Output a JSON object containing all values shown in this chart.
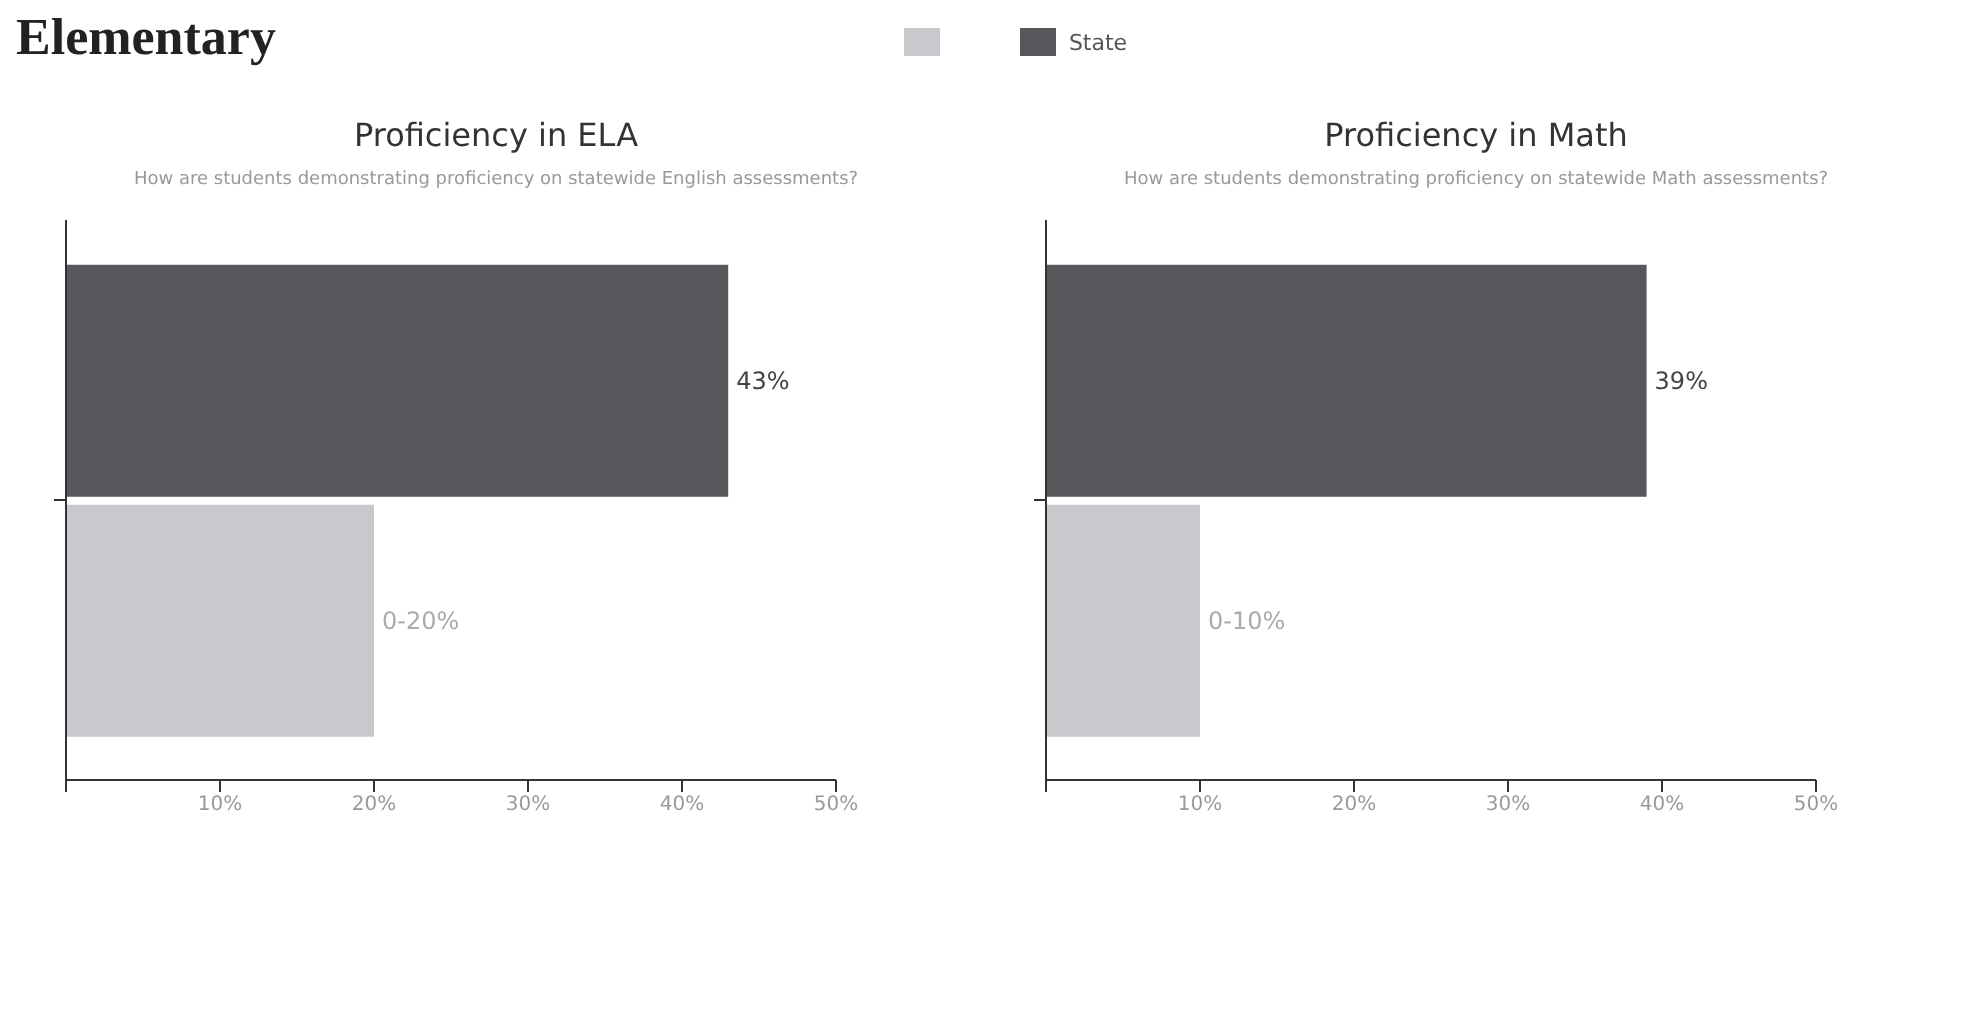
{
  "chart_data": [
    {
      "type": "bar",
      "orientation": "horizontal",
      "title": "Proficiency in ELA",
      "subtitle": "How are students demonstrating proficiency on statewide English assessments?",
      "annotations": [
        "Elementary",
        {
          "text": "0-20%",
          "x": 20
        }
      ],
      "categories": [
        null
      ],
      "series": [
        {
          "color": "#c9c9cd",
          "values": [
            20
          ]
        },
        {
          "name": "State",
          "color": "#58585c",
          "values": [
            43
          ],
          "value_labels": [
            "43%"
          ]
        }
      ],
      "xlim": [
        0,
        50
      ],
      "xticks": [
        {
          "value": 0,
          "label": null
        },
        {
          "value": 10,
          "label": "10%"
        },
        {
          "value": 20,
          "label": "20%"
        },
        {
          "value": 30,
          "label": "30%"
        },
        {
          "value": 40,
          "label": "40%"
        },
        {
          "value": 50,
          "label": "50%"
        }
      ],
      "legend": "top"
    },
    {
      "type": "bar",
      "orientation": "horizontal",
      "title": "Proficiency in Math",
      "subtitle": "How are students demonstrating proficiency on statewide Math assessments?",
      "annotations": [
        {
          "text": "0-10%",
          "x": 10
        }
      ],
      "categories": [
        null
      ],
      "series": [
        {
          "color": "#c9c9cd",
          "values": [
            10
          ]
        },
        {
          "color": "#58585c",
          "values": [
            39
          ],
          "value_labels": [
            "39%"
          ]
        }
      ],
      "xlim": [
        0,
        50
      ],
      "xticks": [
        {
          "value": 0,
          "label": null
        },
        {
          "value": 10,
          "label": "10%"
        },
        {
          "value": 20,
          "label": "20%"
        },
        {
          "value": 30,
          "label": "30%"
        },
        {
          "value": 40,
          "label": "40%"
        },
        {
          "value": 50,
          "label": "50%"
        }
      ]
    }
  ]
}
